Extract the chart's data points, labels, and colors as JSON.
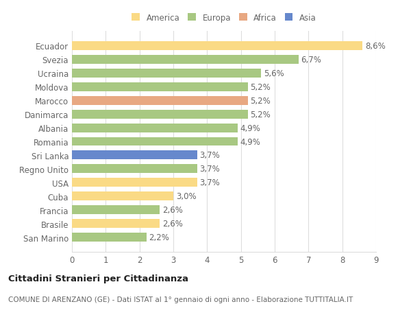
{
  "countries": [
    "Ecuador",
    "Svezia",
    "Ucraina",
    "Moldova",
    "Marocco",
    "Danimarca",
    "Albania",
    "Romania",
    "Sri Lanka",
    "Regno Unito",
    "USA",
    "Cuba",
    "Francia",
    "Brasile",
    "San Marino"
  ],
  "values": [
    8.6,
    6.7,
    5.6,
    5.2,
    5.2,
    5.2,
    4.9,
    4.9,
    3.7,
    3.7,
    3.7,
    3.0,
    2.6,
    2.6,
    2.2
  ],
  "labels": [
    "8,6%",
    "6,7%",
    "5,6%",
    "5,2%",
    "5,2%",
    "5,2%",
    "4,9%",
    "4,9%",
    "3,7%",
    "3,7%",
    "3,7%",
    "3,0%",
    "2,6%",
    "2,6%",
    "2,2%"
  ],
  "continents": [
    "America",
    "Europa",
    "Europa",
    "Europa",
    "Africa",
    "Europa",
    "Europa",
    "Europa",
    "Asia",
    "Europa",
    "America",
    "America",
    "Europa",
    "America",
    "Europa"
  ],
  "colors": {
    "America": "#FADA85",
    "Europa": "#A8C882",
    "Africa": "#E8A882",
    "Asia": "#6688CC"
  },
  "legend_items": [
    "America",
    "Europa",
    "Africa",
    "Asia"
  ],
  "legend_colors": [
    "#FADA85",
    "#A8C882",
    "#E8A882",
    "#6688CC"
  ],
  "title": "Cittadini Stranieri per Cittadinanza",
  "subtitle": "COMUNE DI ARENZANO (GE) - Dati ISTAT al 1° gennaio di ogni anno - Elaborazione TUTTITALIA.IT",
  "xlim": [
    0,
    9
  ],
  "xticks": [
    0,
    1,
    2,
    3,
    4,
    5,
    6,
    7,
    8,
    9
  ],
  "bg_color": "#ffffff",
  "grid_color": "#dddddd",
  "bar_height": 0.65,
  "label_fontsize": 8.5,
  "tick_fontsize": 8.5,
  "title_fontsize": 9.5,
  "subtitle_fontsize": 7.5,
  "legend_fontsize": 8.5
}
